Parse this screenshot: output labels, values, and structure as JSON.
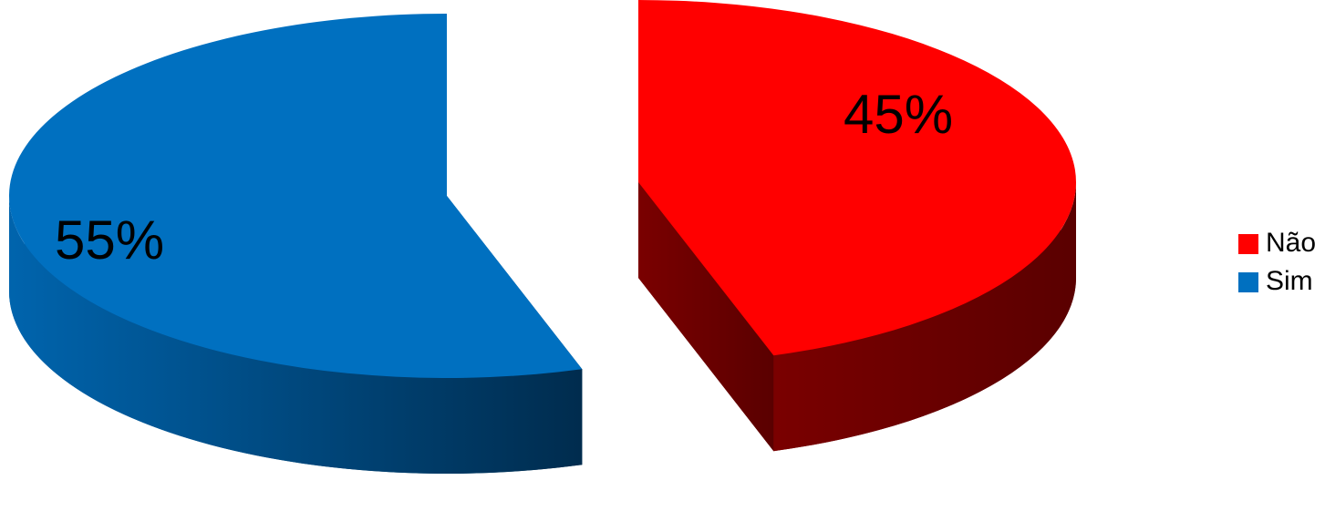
{
  "chart_data": {
    "type": "pie",
    "categories": [
      "Não",
      "Sim"
    ],
    "values": [
      45,
      55
    ],
    "value_labels": [
      "45%",
      "55%"
    ],
    "colors": [
      "#ff0000",
      "#0070c0"
    ],
    "legend": "right"
  }
}
